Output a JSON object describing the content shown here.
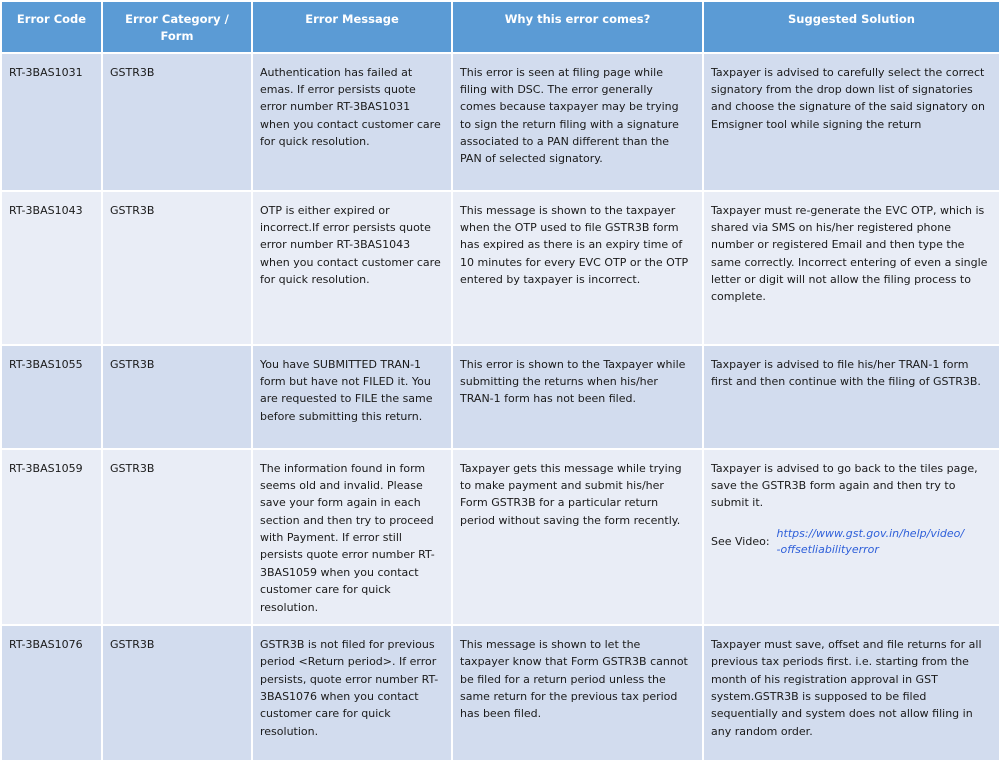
{
  "colors": {
    "header_background": "#5b9bd5",
    "header_text": "#ffffff",
    "row_odd_background": "#d2dcee",
    "row_even_background": "#e9edf6",
    "body_text": "#1a1a1a",
    "link_text": "#2e5fd9",
    "grid_lines": "#ffffff"
  },
  "table": {
    "columns": [
      {
        "label": "Error Code"
      },
      {
        "label": "Error Category / Form"
      },
      {
        "label": "Error Message"
      },
      {
        "label": "Why this error comes?"
      },
      {
        "label": "Suggested Solution"
      }
    ],
    "rows": [
      {
        "error_code": "RT-3BAS1031",
        "category": "GSTR3B",
        "message": "Authentication has failed at emas. If error persists quote error number RT-3BAS1031 when you contact customer care for quick resolution.",
        "why": "This error is seen at filing page while filing with DSC. The error generally comes because taxpayer may be trying to sign the return filing with a signature associated to a PAN different than the PAN of selected signatory.",
        "solution": "Taxpayer is advised to carefully select the correct signatory from the drop down list of signatories and choose the signature of the said signatory on Emsigner tool while signing the return"
      },
      {
        "error_code": "RT-3BAS1043",
        "category": "GSTR3B",
        "message": "OTP is either expired or incorrect.If error persists quote error number RT-3BAS1043 when you contact customer care for quick resolution.",
        "why": "This message is shown to the taxpayer when the OTP used to file GSTR3B form has expired as there is an expiry time of 10 minutes for every EVC OTP or the OTP entered by taxpayer is incorrect.",
        "solution": "Taxpayer must re-generate the EVC OTP, which is shared via SMS on his/her registered phone number or registered Email and then type the same correctly. Incorrect entering of even a single letter or digit will not allow the filing process to complete."
      },
      {
        "error_code": "RT-3BAS1055",
        "category": "GSTR3B",
        "message": "You have SUBMITTED TRAN-1 form but have not FILED it. You are requested to FILE the same before submitting this return.",
        "why": "This error is shown to the Taxpayer while submitting the returns when his/her TRAN-1 form has not been filed.",
        "solution": "Taxpayer is advised to file his/her TRAN-1 form first and then continue with the filing of GSTR3B."
      },
      {
        "error_code": "RT-3BAS1059",
        "category": "GSTR3B",
        "message": "The information found in form seems old and invalid. Please save your form again in each section and then try to proceed with Payment. If error still persists quote error number RT-3BAS1059 when you contact customer care for quick resolution.",
        "why": "Taxpayer gets this message while trying to make payment and submit his/her Form GSTR3B for a particular return period without saving the form recently.",
        "solution": "Taxpayer is advised to go back to the tiles page, save the GSTR3B form again and then try to submit it.",
        "see_video_label": "See Video:",
        "link_line1": "https://www.gst.gov.in/help/video/",
        "link_line2": "-offsetliabilityerror",
        "link_href": "https://www.gst.gov.in/help/video/-offsetliabilityerror"
      },
      {
        "error_code": "RT-3BAS1076",
        "category": "GSTR3B",
        "message": "GSTR3B is not filed for previous period <Return period>. If error persists, quote error number RT-3BAS1076 when you contact customer care for quick resolution.",
        "why": "This message is shown to let the taxpayer know that Form GSTR3B cannot be filed for a return period unless the same return for the previous tax period has been filed.",
        "solution": "Taxpayer must save, offset and file returns for all previous tax periods first. i.e. starting from the month of his registration approval in GST system.GSTR3B is supposed to be filed sequentially and system does not allow filing in any random order."
      }
    ]
  }
}
